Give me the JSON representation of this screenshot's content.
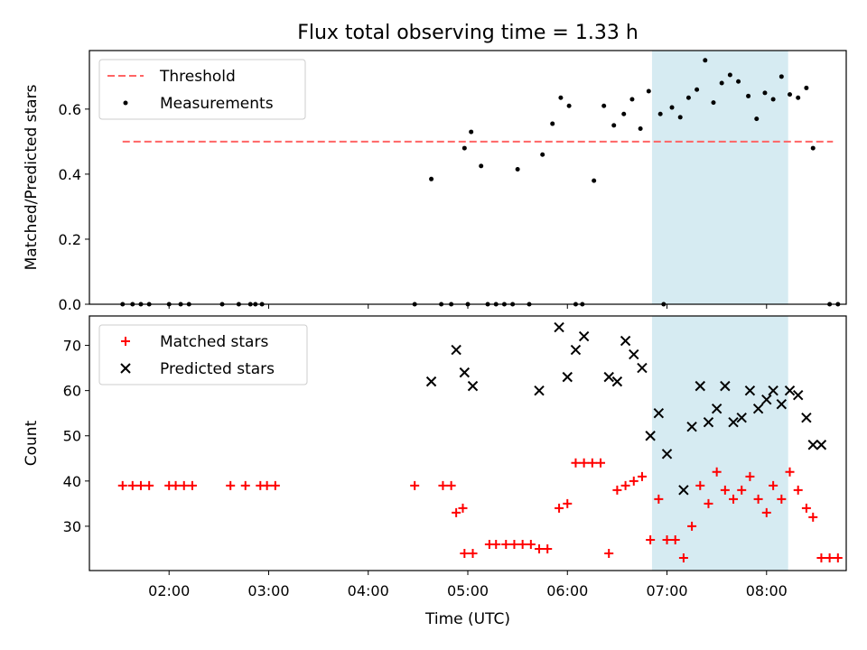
{
  "title": "Flux total observing time = 1.33 h",
  "chart_data": [
    {
      "type": "scatter",
      "panel": "top",
      "ylabel": "Matched/Predicted stars",
      "xlabel": "",
      "xlim": [
        "01:12",
        "08:48"
      ],
      "ylim": [
        0,
        0.78
      ],
      "yticks": [
        0.0,
        0.2,
        0.4,
        0.6
      ],
      "grid": false,
      "legend_position": "top-left",
      "shaded_interval": {
        "x_start": "06:51",
        "x_end": "08:13",
        "color": "#add8e6"
      },
      "threshold": {
        "name": "Threshold",
        "value": 0.5,
        "x_start": "01:32",
        "x_end": "08:40",
        "color": "#ff6464"
      },
      "series": [
        {
          "name": "Measurements",
          "color": "#000000",
          "points": [
            [
              "01:32",
              0
            ],
            [
              "01:38",
              0
            ],
            [
              "01:43",
              0
            ],
            [
              "01:48",
              0
            ],
            [
              "02:00",
              0
            ],
            [
              "02:07",
              0
            ],
            [
              "02:12",
              0
            ],
            [
              "02:32",
              0
            ],
            [
              "02:42",
              0
            ],
            [
              "02:49",
              0
            ],
            [
              "02:52",
              0
            ],
            [
              "02:56",
              0
            ],
            [
              "04:28",
              0
            ],
            [
              "04:44",
              0
            ],
            [
              "04:50",
              0
            ],
            [
              "04:38",
              0.385
            ],
            [
              "05:00",
              0
            ],
            [
              "04:58",
              0.48
            ],
            [
              "05:02",
              0.53
            ],
            [
              "05:08",
              0.425
            ],
            [
              "05:12",
              0
            ],
            [
              "05:17",
              0
            ],
            [
              "05:22",
              0
            ],
            [
              "05:27",
              0
            ],
            [
              "05:30",
              0.415
            ],
            [
              "05:37",
              0
            ],
            [
              "05:45",
              0.46
            ],
            [
              "05:51",
              0.555
            ],
            [
              "05:56",
              0.635
            ],
            [
              "06:01",
              0.61
            ],
            [
              "06:05",
              0
            ],
            [
              "06:09",
              0
            ],
            [
              "06:16",
              0.38
            ],
            [
              "06:22",
              0.61
            ],
            [
              "06:28",
              0.55
            ],
            [
              "06:34",
              0.585
            ],
            [
              "06:39",
              0.63
            ],
            [
              "06:44",
              0.54
            ],
            [
              "06:49",
              0.655
            ],
            [
              "06:56",
              0.585
            ],
            [
              "06:58",
              0
            ],
            [
              "07:03",
              0.605
            ],
            [
              "07:08",
              0.575
            ],
            [
              "07:13",
              0.635
            ],
            [
              "07:18",
              0.66
            ],
            [
              "07:23",
              0.75
            ],
            [
              "07:28",
              0.62
            ],
            [
              "07:33",
              0.68
            ],
            [
              "07:38",
              0.705
            ],
            [
              "07:43",
              0.685
            ],
            [
              "07:49",
              0.64
            ],
            [
              "07:54",
              0.57
            ],
            [
              "07:59",
              0.65
            ],
            [
              "08:04",
              0.63
            ],
            [
              "08:09",
              0.7
            ],
            [
              "08:14",
              0.645
            ],
            [
              "08:19",
              0.635
            ],
            [
              "08:24",
              0.665
            ],
            [
              "08:28",
              0.48
            ],
            [
              "08:38",
              0
            ],
            [
              "08:43",
              0
            ]
          ]
        }
      ]
    },
    {
      "type": "scatter",
      "panel": "bottom",
      "ylabel": "Count",
      "xlabel": "Time (UTC)",
      "xlim": [
        "01:12",
        "08:48"
      ],
      "ylim": [
        20.2,
        76.5
      ],
      "yticks": [
        30,
        40,
        50,
        60,
        70
      ],
      "xticks": [
        "02:00",
        "03:00",
        "04:00",
        "05:00",
        "06:00",
        "07:00",
        "08:00"
      ],
      "grid": false,
      "legend_position": "top-left",
      "shaded_interval": {
        "x_start": "06:51",
        "x_end": "08:13",
        "color": "#add8e6"
      },
      "series": [
        {
          "name": "Matched stars",
          "marker": "+",
          "color": "#ff0000",
          "points": [
            [
              "01:32",
              39
            ],
            [
              "01:38",
              39
            ],
            [
              "01:43",
              39
            ],
            [
              "01:48",
              39
            ],
            [
              "02:00",
              39
            ],
            [
              "02:04",
              39
            ],
            [
              "02:09",
              39
            ],
            [
              "02:14",
              39
            ],
            [
              "02:37",
              39
            ],
            [
              "02:46",
              39
            ],
            [
              "02:55",
              39
            ],
            [
              "02:59",
              39
            ],
            [
              "03:04",
              39
            ],
            [
              "04:28",
              39
            ],
            [
              "04:45",
              39
            ],
            [
              "04:50",
              39
            ],
            [
              "04:53",
              33
            ],
            [
              "04:57",
              34
            ],
            [
              "04:58",
              24
            ],
            [
              "05:03",
              24
            ],
            [
              "05:13",
              26
            ],
            [
              "05:17",
              26
            ],
            [
              "05:23",
              26
            ],
            [
              "05:28",
              26
            ],
            [
              "05:33",
              26
            ],
            [
              "05:38",
              26
            ],
            [
              "05:43",
              25
            ],
            [
              "05:48",
              25
            ],
            [
              "05:55",
              34
            ],
            [
              "06:00",
              35
            ],
            [
              "06:05",
              44
            ],
            [
              "06:10",
              44
            ],
            [
              "06:15",
              44
            ],
            [
              "06:20",
              44
            ],
            [
              "06:25",
              24
            ],
            [
              "06:30",
              38
            ],
            [
              "06:35",
              39
            ],
            [
              "06:40",
              40
            ],
            [
              "06:45",
              41
            ],
            [
              "06:50",
              27
            ],
            [
              "06:55",
              36
            ],
            [
              "07:00",
              27
            ],
            [
              "07:05",
              27
            ],
            [
              "07:10",
              23
            ],
            [
              "07:15",
              30
            ],
            [
              "07:20",
              39
            ],
            [
              "07:25",
              35
            ],
            [
              "07:30",
              42
            ],
            [
              "07:35",
              38
            ],
            [
              "07:40",
              36
            ],
            [
              "07:45",
              38
            ],
            [
              "07:50",
              41
            ],
            [
              "07:55",
              36
            ],
            [
              "08:00",
              33
            ],
            [
              "08:04",
              39
            ],
            [
              "08:09",
              36
            ],
            [
              "08:14",
              42
            ],
            [
              "08:19",
              38
            ],
            [
              "08:24",
              34
            ],
            [
              "08:28",
              32
            ],
            [
              "08:33",
              23
            ],
            [
              "08:38",
              23
            ],
            [
              "08:43",
              23
            ]
          ]
        },
        {
          "name": "Predicted stars",
          "marker": "x",
          "color": "#000000",
          "points": [
            [
              "04:38",
              62
            ],
            [
              "04:53",
              69
            ],
            [
              "04:58",
              64
            ],
            [
              "05:03",
              61
            ],
            [
              "05:43",
              60
            ],
            [
              "05:55",
              74
            ],
            [
              "06:00",
              63
            ],
            [
              "06:05",
              69
            ],
            [
              "06:10",
              72
            ],
            [
              "06:25",
              63
            ],
            [
              "06:30",
              62
            ],
            [
              "06:35",
              71
            ],
            [
              "06:40",
              68
            ],
            [
              "06:45",
              65
            ],
            [
              "06:50",
              50
            ],
            [
              "06:55",
              55
            ],
            [
              "07:00",
              46
            ],
            [
              "07:10",
              38
            ],
            [
              "07:15",
              52
            ],
            [
              "07:20",
              61
            ],
            [
              "07:25",
              53
            ],
            [
              "07:30",
              56
            ],
            [
              "07:35",
              61
            ],
            [
              "07:40",
              53
            ],
            [
              "07:45",
              54
            ],
            [
              "07:50",
              60
            ],
            [
              "07:55",
              56
            ],
            [
              "08:00",
              58
            ],
            [
              "08:04",
              60
            ],
            [
              "08:09",
              57
            ],
            [
              "08:14",
              60
            ],
            [
              "08:19",
              59
            ],
            [
              "08:24",
              54
            ],
            [
              "08:28",
              48
            ],
            [
              "08:33",
              48
            ]
          ]
        }
      ]
    }
  ]
}
